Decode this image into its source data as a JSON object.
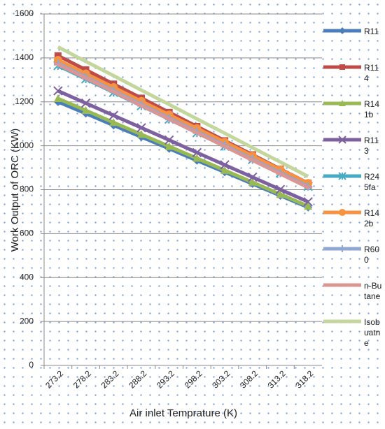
{
  "chart_data": {
    "type": "line",
    "x_label": "Air inlet Temprature (K)",
    "y_label": "Work Output of ORC (KW)",
    "categories": [
      "273.2",
      "278.2",
      "283.2",
      "288.2",
      "293.2",
      "298.2",
      "303.2",
      "308.2",
      "313.2",
      "318.2"
    ],
    "ylim": [
      0,
      1600
    ],
    "yticks": [
      0,
      200,
      400,
      600,
      800,
      1000,
      1200,
      1400,
      1600
    ],
    "grid": true,
    "legend": "right",
    "series": [
      {
        "name": "R11",
        "color": "#4a7ebb",
        "marker": "diamond",
        "values": [
          1200,
          1147,
          1093,
          1040,
          987,
          933,
          880,
          827,
          773,
          720
        ]
      },
      {
        "name": "R114",
        "color": "#be4b48",
        "marker": "square",
        "values": [
          1410,
          1346,
          1281,
          1217,
          1152,
          1088,
          1023,
          959,
          894,
          830
        ]
      },
      {
        "name": "R141b",
        "color": "#98b954",
        "marker": "triangle",
        "values": [
          1215,
          1161,
          1106,
          1052,
          997,
          943,
          888,
          834,
          779,
          725
        ]
      },
      {
        "name": "R113",
        "color": "#7d60a0",
        "marker": "x",
        "values": [
          1250,
          1194,
          1138,
          1082,
          1026,
          969,
          913,
          857,
          801,
          745
        ]
      },
      {
        "name": "R245fa",
        "color": "#46aac5",
        "marker": "star",
        "values": [
          1365,
          1304,
          1243,
          1182,
          1121,
          1059,
          998,
          937,
          876,
          815
        ]
      },
      {
        "name": "R142b",
        "color": "#f69240",
        "marker": "circle",
        "values": [
          1390,
          1328,
          1266,
          1203,
          1141,
          1079,
          1017,
          954,
          892,
          830
        ]
      },
      {
        "name": "R600",
        "color": "#8fa7d4",
        "marker": "plus",
        "values": [
          1375,
          1313,
          1251,
          1188,
          1126,
          1064,
          1002,
          939,
          877,
          815
        ]
      },
      {
        "name": "n-Butane",
        "color": "#d99694",
        "marker": "dash",
        "values": [
          1370,
          1308,
          1246,
          1183,
          1121,
          1059,
          997,
          934,
          872,
          810
        ]
      },
      {
        "name": "Isobuatne",
        "color": "#c3d69b",
        "marker": "none",
        "values": [
          1450,
          1384,
          1319,
          1253,
          1188,
          1122,
          1057,
          991,
          926,
          860
        ]
      }
    ]
  }
}
